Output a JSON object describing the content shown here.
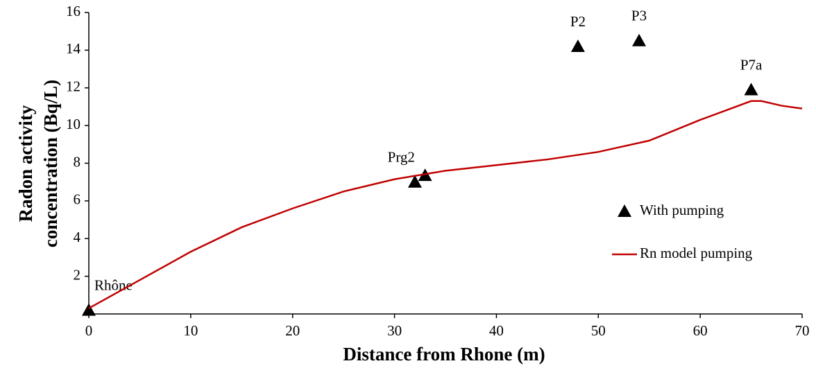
{
  "chart_data": {
    "type": "scatter-line",
    "x_label": "Distance from Rhone (m)",
    "y_label": [
      "Radon activity",
      "concentration (Bq/L)"
    ],
    "xlim": [
      0,
      70
    ],
    "xticks": [
      0,
      10,
      20,
      30,
      40,
      50,
      60,
      70
    ],
    "ylim": [
      0,
      16
    ],
    "yticks": [
      2,
      4,
      6,
      8,
      10,
      12,
      14,
      16
    ],
    "legend": "right",
    "series": [
      {
        "name": "With pumping",
        "type": "scatter",
        "color": "#000000",
        "x": [
          0,
          32,
          33,
          48,
          54,
          65
        ],
        "values": [
          0.2,
          7.0,
          7.35,
          14.2,
          14.5,
          11.9
        ],
        "labels": [
          "Rhône",
          "Prg2",
          null,
          "P2",
          "P3",
          "P7a"
        ]
      },
      {
        "name": "Rn model pumping",
        "type": "line",
        "color": "#c00000",
        "x": [
          0,
          5,
          10,
          15,
          20,
          25,
          30,
          35,
          40,
          45,
          50,
          55,
          60,
          63,
          65,
          66,
          68,
          70
        ],
        "values": [
          0.3,
          1.8,
          3.3,
          4.6,
          5.6,
          6.5,
          7.15,
          7.6,
          7.9,
          8.2,
          8.6,
          9.2,
          10.3,
          10.9,
          11.3,
          11.3,
          11.05,
          10.9
        ]
      }
    ]
  }
}
